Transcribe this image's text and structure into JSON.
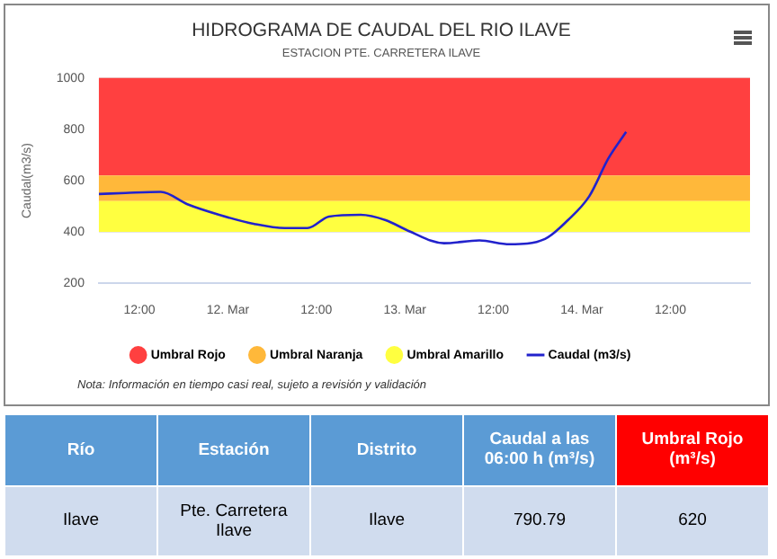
{
  "chart_data": [
    {
      "type": "line",
      "title": "HIDROGRAMA DE CAUDAL DEL RIO ILAVE",
      "subtitle": "ESTACION PTE. CARRETERA ILAVE",
      "ylabel": "Caudal(m3/s)",
      "x": [
        "--03-11T06:30",
        "--03-11T10:06",
        "--03-11T14:54",
        "--03-11T18:30",
        "--03-11T22:48",
        "--03-12T03:36",
        "--03-12T07:42",
        "--03-12T10:48",
        "--03-12T13:42",
        "--03-12T18:00",
        "--03-12T21:24",
        "--03-13T00:30",
        "--03-13T05:18",
        "--03-13T10:06",
        "--03-13T14:12",
        "--03-13T19:00",
        "--03-13T22:06",
        "--03-14T01:00",
        "--03-14T03:36",
        "--03-14T06:00"
      ],
      "series": [
        {
          "name": "Caudal (m3/s)",
          "color": "#2222cc",
          "values": [
            548,
            552,
            556,
            508,
            467,
            431,
            415,
            415,
            460,
            467,
            446,
            404,
            356,
            367,
            352,
            373,
            446,
            539,
            687,
            790
          ]
        }
      ],
      "xlim": [
        "--03-11T06:30",
        "--03-14T22:48"
      ],
      "xticks": [
        {
          "value": "--03-11T12:00",
          "label": "12:00"
        },
        {
          "value": "--03-12",
          "label": "12. Mar"
        },
        {
          "value": "--03-12T12:00",
          "label": "12:00"
        },
        {
          "value": "--03-13",
          "label": "13. Mar"
        },
        {
          "value": "--03-13T12:00",
          "label": "12:00"
        },
        {
          "value": "--03-14",
          "label": "14. Mar"
        },
        {
          "value": "--03-14T12:00",
          "label": "12:00"
        }
      ],
      "ylim": [
        200,
        1000
      ],
      "yticks": [
        200,
        400,
        600,
        800,
        1000
      ],
      "bands": [
        {
          "axis": "y",
          "from": 620,
          "to": 1000,
          "label": "Umbral Rojo",
          "color": "#ff4040"
        },
        {
          "axis": "y",
          "from": 520,
          "to": 620,
          "label": "Umbral Naranja",
          "color": "#ffb83a"
        },
        {
          "axis": "y",
          "from": 400,
          "to": 520,
          "label": "Umbral Amarillo",
          "color": "#ffff40"
        }
      ],
      "grid": "y",
      "legend": "bottom",
      "marker": "none",
      "line_style": "solid",
      "annotations": [
        "Nota: Información en tiempo casi real, sujeto a revisión y validación"
      ]
    },
    {
      "type": "other",
      "annotations": [
        "Río",
        "Estación",
        "Distrito",
        "Caudal a las 06:00 h (m³/s)",
        "Umbral Rojo (m³/s)",
        "Ilave",
        "Pte. Carretera Ilave",
        "Ilave",
        "790.79",
        "620"
      ]
    }
  ]
}
